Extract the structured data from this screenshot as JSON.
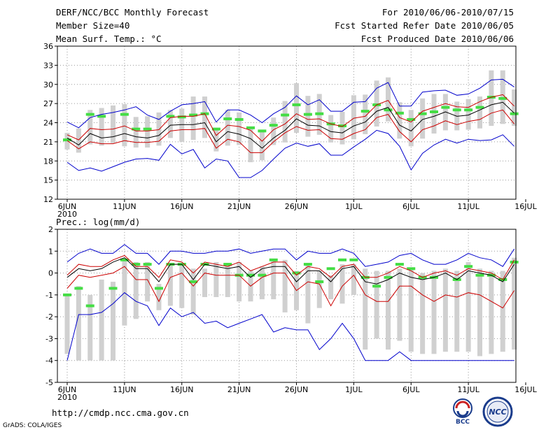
{
  "header": {
    "title": "DERF/NCC/BCC Monthly Forecast",
    "member_size": "Member Size=40",
    "variable_temp": "Mean Surf. Temp.: °C",
    "forecast_period": "For 2010/06/06-2010/07/15",
    "fcst_started": "Fcst Started Refer Date 2010/06/05",
    "fcst_produced": "Fcst Produced Date 2010/06/06"
  },
  "colors": {
    "envelope": "#0000cc",
    "ensemble_band": "#cc0000",
    "mean": "#000000",
    "observed": "#44dd44",
    "bar": "#d0d0d0",
    "grid": "#999999"
  },
  "chart_data": [
    {
      "type": "line",
      "title": "Mean Surf. Temp.: °C",
      "x": [
        1,
        2,
        3,
        4,
        5,
        6,
        7,
        8,
        9,
        10,
        11,
        12,
        13,
        14,
        15,
        16,
        17,
        18,
        19,
        20,
        21,
        22,
        23,
        24,
        25,
        26,
        27,
        28,
        29,
        30,
        31,
        32,
        33,
        34,
        35,
        36,
        37,
        38,
        39,
        40
      ],
      "xticks": [
        {
          "x": 1,
          "label": "6JUN"
        },
        {
          "x": 6,
          "label": "11JUN"
        },
        {
          "x": 11,
          "label": "16JUN"
        },
        {
          "x": 16,
          "label": "21JUN"
        },
        {
          "x": 21,
          "label": "26JUN"
        },
        {
          "x": 26,
          "label": "1JUL"
        },
        {
          "x": 31,
          "label": "6JUL"
        },
        {
          "x": 36,
          "label": "11JUL"
        },
        {
          "x": 41,
          "label": "16JUL"
        }
      ],
      "year_label": "2010",
      "ylim": [
        12,
        36
      ],
      "yticks": [
        12,
        15,
        18,
        21,
        24,
        27,
        30,
        33,
        36
      ],
      "grid": true,
      "series": [
        {
          "name": "max",
          "color": "#0000cc",
          "values": [
            24.1,
            23.2,
            24.8,
            25.3,
            25.6,
            26.0,
            26.5,
            25.2,
            24.5,
            25.8,
            26.8,
            27.0,
            27.3,
            24.1,
            26.0,
            26.0,
            25.2,
            24.0,
            25.4,
            26.4,
            28.2,
            26.8,
            27.6,
            25.8,
            25.8,
            27.2,
            27.3,
            29.4,
            30.3,
            26.6,
            26.6,
            28.8,
            29.0,
            29.1,
            28.3,
            28.5,
            29.4,
            30.7,
            30.8,
            29.6
          ]
        },
        {
          "name": "upper",
          "color": "#cc0000",
          "values": [
            22.1,
            21.3,
            23.1,
            22.9,
            23.0,
            23.5,
            22.7,
            22.7,
            22.9,
            24.8,
            25.0,
            25.0,
            25.4,
            22.0,
            23.6,
            23.4,
            22.8,
            21.1,
            22.9,
            23.8,
            25.4,
            24.5,
            24.6,
            23.8,
            23.4,
            24.7,
            25.0,
            26.8,
            27.5,
            24.8,
            24.1,
            25.8,
            26.4,
            27.0,
            26.5,
            26.4,
            27.3,
            28.0,
            28.4,
            26.6
          ]
        },
        {
          "name": "mean",
          "color": "#000000",
          "values": [
            21.6,
            20.5,
            22.3,
            21.6,
            21.8,
            22.3,
            21.8,
            21.6,
            22.0,
            23.6,
            23.7,
            23.7,
            24.0,
            21.0,
            22.6,
            22.2,
            21.5,
            20.0,
            21.6,
            22.8,
            24.6,
            23.6,
            23.5,
            22.6,
            22.4,
            23.5,
            24.1,
            25.8,
            26.4,
            23.6,
            22.7,
            24.5,
            25.0,
            25.7,
            25.0,
            25.2,
            26.0,
            26.8,
            27.2,
            25.5
          ]
        },
        {
          "name": "lower",
          "color": "#cc0000",
          "values": [
            21.2,
            19.9,
            21.0,
            20.7,
            20.7,
            21.2,
            20.9,
            20.9,
            21.1,
            22.7,
            22.9,
            22.9,
            23.1,
            20.0,
            21.4,
            21.0,
            19.3,
            19.3,
            21.0,
            22.4,
            23.4,
            22.8,
            22.9,
            21.5,
            21.4,
            22.3,
            22.9,
            24.8,
            25.3,
            22.6,
            21.0,
            22.9,
            23.5,
            24.3,
            23.7,
            24.2,
            24.5,
            25.5,
            26.0,
            23.8
          ]
        },
        {
          "name": "min",
          "color": "#0000cc",
          "values": [
            17.8,
            16.5,
            16.9,
            16.4,
            17.1,
            17.8,
            18.3,
            18.4,
            18.1,
            20.6,
            19.1,
            19.8,
            16.9,
            18.3,
            18.0,
            15.4,
            15.4,
            16.5,
            18.3,
            20.0,
            20.8,
            20.3,
            20.7,
            18.9,
            18.9,
            20.2,
            21.4,
            22.8,
            22.3,
            20.3,
            16.6,
            19.2,
            20.5,
            21.4,
            20.8,
            21.4,
            21.2,
            21.3,
            22.1,
            20.3
          ]
        }
      ],
      "bars": {
        "low": [
          19.8,
          19.3,
          20.6,
          20.4,
          20.8,
          20.3,
          20.1,
          20.1,
          20.4,
          21.6,
          21.0,
          21.3,
          21.6,
          19.5,
          20.4,
          20.5,
          17.8,
          18.1,
          20.5,
          20.9,
          22.4,
          21.8,
          22.1,
          20.9,
          20.6,
          21.4,
          22.2,
          23.4,
          24.2,
          21.5,
          20.3,
          21.5,
          22.3,
          22.8,
          22.8,
          22.9,
          23.1,
          23.5,
          23.8,
          23.5
        ],
        "high": [
          22.4,
          23.1,
          26.0,
          26.3,
          26.7,
          26.9,
          24.9,
          25.0,
          25.6,
          26.0,
          26.2,
          28.1,
          28.1,
          23.2,
          26.0,
          25.6,
          23.1,
          22.8,
          24.8,
          27.4,
          30.2,
          28.2,
          28.5,
          25.2,
          25.7,
          28.3,
          28.4,
          30.6,
          31.1,
          27.2,
          26.0,
          27.8,
          28.5,
          28.5,
          27.3,
          27.7,
          28.1,
          32.2,
          32.2,
          29.2
        ]
      },
      "observed": [
        21.3,
        null,
        25.3,
        25.0,
        null,
        25.3,
        23.0,
        23.0,
        null,
        25.0,
        24.9,
        25.2,
        25.4,
        23.0,
        24.6,
        24.5,
        23.2,
        22.7,
        23.6,
        25.2,
        26.8,
        25.3,
        25.4,
        23.8,
        23.5,
        null,
        25.8,
        26.8,
        26.0,
        25.5,
        24.5,
        25.4,
        25.7,
        26.4,
        26.0,
        26.0,
        26.4,
        28.0,
        27.8,
        25.4
      ]
    },
    {
      "type": "line",
      "title": "Prec.: log(mm/d)",
      "x": [
        1,
        2,
        3,
        4,
        5,
        6,
        7,
        8,
        9,
        10,
        11,
        12,
        13,
        14,
        15,
        16,
        17,
        18,
        19,
        20,
        21,
        22,
        23,
        24,
        25,
        26,
        27,
        28,
        29,
        30,
        31,
        32,
        33,
        34,
        35,
        36,
        37,
        38,
        39,
        40
      ],
      "xticks": [
        {
          "x": 1,
          "label": "6JUN"
        },
        {
          "x": 6,
          "label": "11JUN"
        },
        {
          "x": 11,
          "label": "16JUN"
        },
        {
          "x": 16,
          "label": "21JUN"
        },
        {
          "x": 21,
          "label": "26JUN"
        },
        {
          "x": 26,
          "label": "1JUL"
        },
        {
          "x": 31,
          "label": "6JUL"
        },
        {
          "x": 36,
          "label": "11JUL"
        },
        {
          "x": 41,
          "label": "16JUL"
        }
      ],
      "year_label": "2010",
      "ylim": [
        -5,
        2
      ],
      "yticks": [
        -5,
        -4,
        -3,
        -2,
        -1,
        0,
        1,
        2
      ],
      "grid": true,
      "series": [
        {
          "name": "max",
          "color": "#0000cc",
          "values": [
            0.5,
            0.9,
            1.1,
            0.9,
            0.9,
            1.3,
            0.9,
            0.9,
            0.4,
            1.0,
            1.0,
            0.9,
            0.9,
            1.0,
            1.0,
            1.1,
            0.9,
            1.0,
            1.1,
            1.1,
            0.6,
            1.0,
            0.9,
            0.9,
            1.1,
            0.9,
            0.3,
            0.4,
            0.5,
            0.8,
            0.9,
            0.6,
            0.4,
            0.4,
            0.6,
            0.9,
            0.7,
            0.6,
            0.3,
            1.1
          ]
        },
        {
          "name": "upper",
          "color": "#cc0000",
          "values": [
            -0.1,
            0.4,
            0.3,
            0.3,
            0.6,
            0.8,
            0.3,
            0.3,
            -0.2,
            0.6,
            0.5,
            0.0,
            0.5,
            0.4,
            0.3,
            0.5,
            0.1,
            0.3,
            0.5,
            0.5,
            -0.1,
            0.3,
            0.2,
            -0.2,
            0.3,
            0.4,
            -0.2,
            -0.2,
            0.0,
            0.3,
            0.1,
            -0.2,
            0.0,
            0.1,
            -0.1,
            0.2,
            0.1,
            0.0,
            -0.3,
            0.6
          ]
        },
        {
          "name": "mean",
          "color": "#000000",
          "values": [
            -0.2,
            0.2,
            0.1,
            0.2,
            0.5,
            0.7,
            0.2,
            0.2,
            -0.4,
            0.4,
            0.4,
            -0.3,
            0.4,
            0.3,
            0.2,
            0.3,
            -0.2,
            0.2,
            0.3,
            0.3,
            -0.4,
            0.1,
            0.1,
            -0.4,
            0.2,
            0.3,
            -0.4,
            -0.5,
            -0.3,
            0.0,
            -0.2,
            -0.3,
            -0.2,
            0.0,
            -0.3,
            0.1,
            0.0,
            -0.1,
            -0.4,
            0.4
          ]
        },
        {
          "name": "lower",
          "color": "#cc0000",
          "values": [
            -0.7,
            -0.1,
            -0.2,
            -0.1,
            0.0,
            0.3,
            -0.3,
            -0.3,
            -1.3,
            -0.2,
            0.0,
            -0.6,
            0.0,
            -0.1,
            -0.1,
            -0.1,
            -0.6,
            -0.2,
            0.0,
            0.0,
            -0.8,
            -0.4,
            -0.5,
            -1.5,
            -0.6,
            -0.1,
            -1.0,
            -1.3,
            -1.3,
            -0.6,
            -0.6,
            -1.0,
            -1.3,
            -1.0,
            -1.1,
            -0.9,
            -1.0,
            -1.3,
            -1.6,
            -0.8
          ]
        },
        {
          "name": "min",
          "color": "#0000cc",
          "values": [
            -4.0,
            -1.9,
            -1.9,
            -1.8,
            -1.4,
            -0.9,
            -1.3,
            -1.5,
            -2.4,
            -1.6,
            -2.0,
            -1.8,
            -2.3,
            -2.2,
            -2.5,
            -2.3,
            -2.1,
            -1.9,
            -2.7,
            -2.5,
            -2.6,
            -2.6,
            -3.5,
            -3.0,
            -2.3,
            -3.0,
            -4.0,
            -4.0,
            -4.0,
            -3.6,
            -4.0,
            -4.0,
            -4.0,
            -4.0,
            -4.0,
            -4.0,
            -4.0,
            -4.0,
            -4.0,
            -4.0
          ]
        }
      ],
      "bars": {
        "low": [
          -3.7,
          -4.0,
          -4.0,
          -4.0,
          -4.0,
          -2.4,
          -2.1,
          -1.3,
          -1.7,
          -1.5,
          -1.6,
          -1.9,
          -1.1,
          -1.1,
          -1.1,
          -1.3,
          -1.3,
          -1.2,
          -1.2,
          -1.8,
          -1.7,
          -2.3,
          -1.6,
          -1.2,
          -1.4,
          -1.0,
          -3.5,
          -3.0,
          -3.5,
          -3.1,
          -3.6,
          -3.7,
          -3.7,
          -3.6,
          -3.6,
          -3.6,
          -3.8,
          -3.7,
          -3.6,
          -3.5
        ],
        "high": [
          -1.0,
          -0.6,
          -1.0,
          -0.3,
          -0.4,
          0.6,
          0.5,
          0.5,
          -0.5,
          0.4,
          0.4,
          0.2,
          0.2,
          0.5,
          0.4,
          0.5,
          0.1,
          0.3,
          0.6,
          0.6,
          0.1,
          0.4,
          0.1,
          -0.1,
          0.4,
          0.4,
          0.2,
          0.1,
          0.1,
          0.2,
          0.2,
          0.0,
          0.1,
          0.2,
          0.1,
          0.5,
          0.2,
          0.1,
          0.1,
          0.7
        ]
      },
      "observed": [
        -1.0,
        -0.7,
        -1.5,
        null,
        -0.7,
        0.6,
        0.4,
        0.4,
        -0.7,
        0.4,
        0.4,
        -0.4,
        0.4,
        null,
        0.4,
        -0.1,
        -0.1,
        -0.1,
        0.6,
        null,
        0.0,
        0.4,
        -0.4,
        0.2,
        0.6,
        0.6,
        -0.2,
        -0.6,
        -0.2,
        0.4,
        0.2,
        -0.2,
        -0.2,
        null,
        -0.3,
        0.3,
        -0.1,
        -0.1,
        -0.3,
        0.5
      ]
    }
  ],
  "footer": {
    "url": "http://cmdp.ncc.cma.gov.cn",
    "grads": "GrADS: COLA/IGES",
    "logo_bcc": "BCC",
    "logo_ncc": "NCC"
  }
}
